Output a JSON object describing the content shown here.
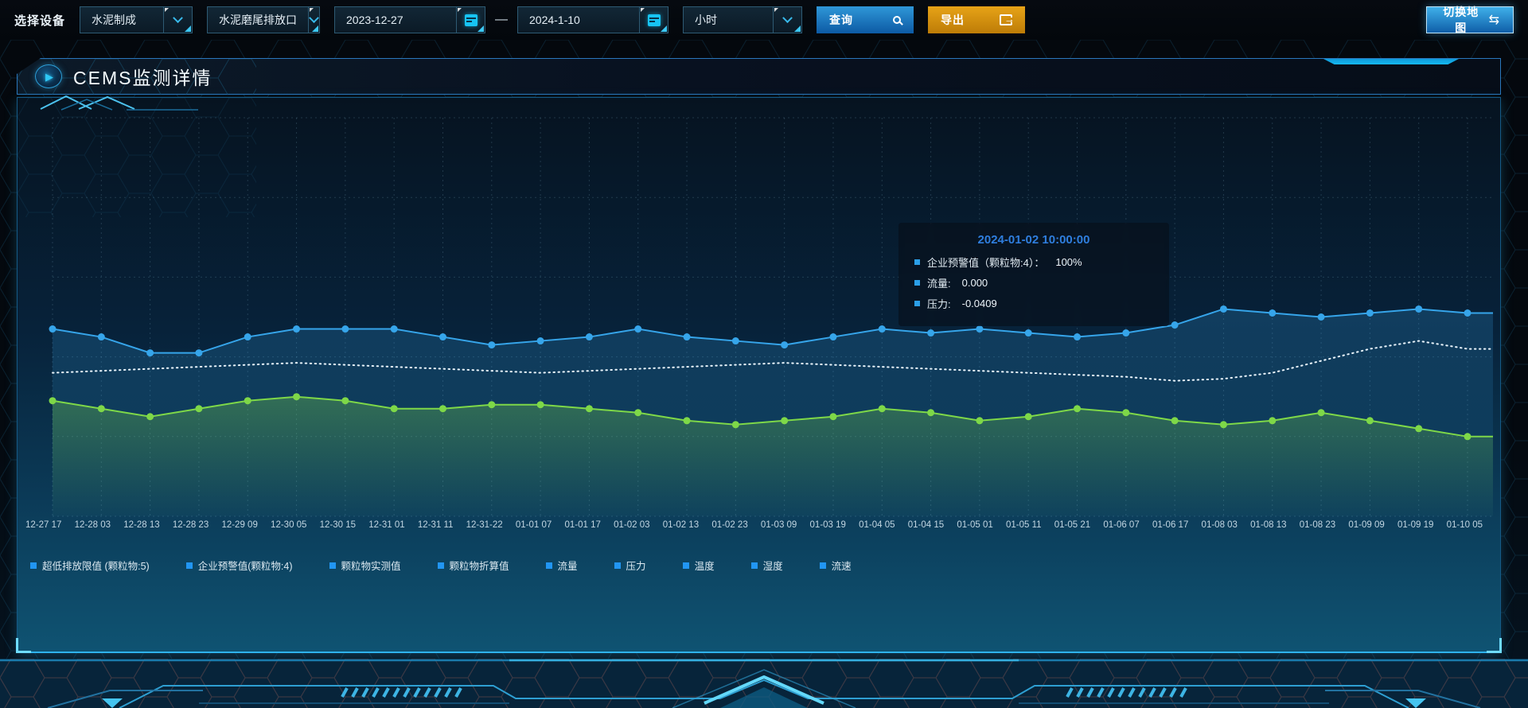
{
  "toolbar": {
    "device_label": "选择设备",
    "process_select_value": "水泥制成",
    "outlet_select_value": "水泥磨尾排放口",
    "date_start": "2023-12-27",
    "date_separator": "—",
    "date_end": "2024-1-10",
    "interval_select_value": "小时",
    "query_button": "查询",
    "export_button": "导出",
    "switch_map_button": "切换地图"
  },
  "panel": {
    "title": "CEMS监测详情"
  },
  "tooltip": {
    "title": "2024-01-02 10:00:00",
    "marker_color": "#2b9fe8",
    "rows": [
      {
        "label": "企业预警值（颗粒物:4）：",
        "value": "100%"
      },
      {
        "label": "流量:",
        "value": "0.000"
      },
      {
        "label": "压力:",
        "value": "-0.0409"
      }
    ]
  },
  "chart_data": {
    "type": "line",
    "title": "",
    "xlabel": "",
    "ylabel": "",
    "y_axis_visible": false,
    "grid": "dashed",
    "legend_position": "bottom-left",
    "legend_marker_color": "#2196f3",
    "legend": [
      "超低排放限值 (颗粒物:5)",
      "企业预警值(颗粒物:4)",
      "颗粒物实测值",
      "颗粒物折算值",
      "流量",
      "压力",
      "温度",
      "湿度",
      "流速"
    ],
    "x": [
      "12-27 17",
      "12-28 03",
      "12-28 13",
      "12-28 23",
      "12-29 09",
      "12-30 05",
      "12-30 15",
      "12-31 01",
      "12-31 11",
      "12-31-22",
      "01-01 07",
      "01-01 17",
      "01-02 03",
      "01-02 13",
      "01-02 23",
      "01-03 09",
      "01-03 19",
      "01-04 05",
      "01-04 15",
      "01-05 01",
      "01-05 11",
      "01-05 21",
      "01-06 07",
      "01-06 17",
      "01-08 03",
      "01-08 13",
      "01-08 23",
      "01-09 09",
      "01-09 19",
      "01-10 05"
    ],
    "ylim": [
      0,
      100
    ],
    "series": [
      {
        "name": "企业预警值（颗粒物:4）",
        "color": "#36a5ea",
        "style": "solid",
        "dots": true,
        "area": true,
        "values": [
          47,
          45,
          41,
          41,
          45,
          47,
          47,
          47,
          45,
          43,
          44,
          45,
          47,
          45,
          44,
          43,
          45,
          47,
          46,
          47,
          46,
          45,
          46,
          48,
          52,
          51,
          50,
          51,
          52,
          51
        ]
      },
      {
        "name": "压力",
        "color": "#e8f3fa",
        "style": "dotted",
        "dots": false,
        "area": false,
        "values": [
          36,
          36.5,
          37,
          37.5,
          38,
          38.5,
          38,
          37.5,
          37,
          36.5,
          36,
          36.5,
          37,
          37.5,
          38,
          38.5,
          38,
          37.5,
          37,
          36.5,
          36,
          35.5,
          35,
          34,
          34.5,
          36,
          39,
          42,
          44,
          42
        ]
      },
      {
        "name": "流量",
        "color": "#7ed848",
        "style": "solid",
        "dots": true,
        "area": true,
        "values": [
          29,
          27,
          25,
          27,
          29,
          30,
          29,
          27,
          27,
          28,
          28,
          27,
          26,
          24,
          23,
          24,
          25,
          27,
          26,
          24,
          25,
          27,
          26,
          24,
          23,
          24,
          26,
          24,
          22,
          20
        ]
      }
    ]
  }
}
